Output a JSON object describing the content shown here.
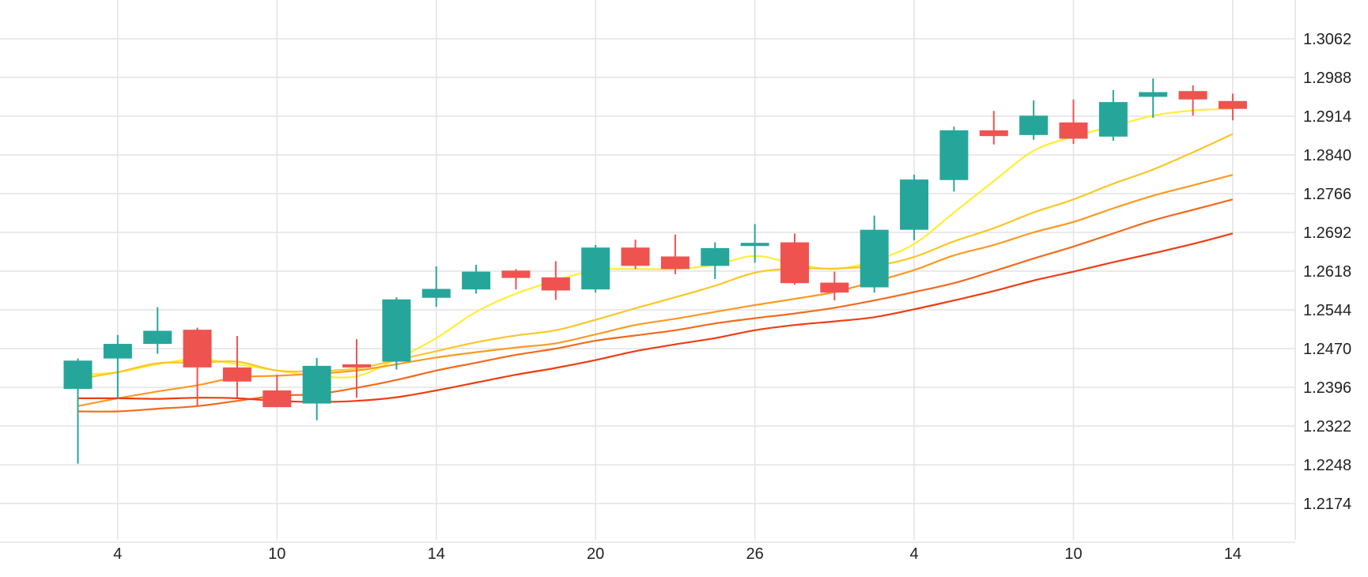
{
  "chart_data": {
    "type": "candlestick",
    "title": "",
    "xlabel": "",
    "ylabel": "",
    "ylim": [
      1.21,
      1.3136
    ],
    "y_ticks": [
      1.3062,
      1.2988,
      1.2914,
      1.284,
      1.2766,
      1.2692,
      1.2618,
      1.2544,
      1.247,
      1.2396,
      1.2322,
      1.2248,
      1.2174
    ],
    "x_tick_labels": [
      {
        "index": 1,
        "label": "4"
      },
      {
        "index": 5,
        "label": "10"
      },
      {
        "index": 9,
        "label": "14"
      },
      {
        "index": 13,
        "label": "20"
      },
      {
        "index": 17,
        "label": "26"
      },
      {
        "index": 21,
        "label": "4"
      },
      {
        "index": 25,
        "label": "10"
      },
      {
        "index": 29,
        "label": "14"
      }
    ],
    "grid": true,
    "colors": {
      "up": "#26a69a",
      "down": "#ef5350",
      "grid": "#e3e3e3",
      "axis_text": "#222222"
    },
    "candles": [
      {
        "o": 1.2393,
        "h": 1.2451,
        "l": 1.225,
        "c": 1.2447
      },
      {
        "o": 1.2451,
        "h": 1.2496,
        "l": 1.2375,
        "c": 1.2479
      },
      {
        "o": 1.2479,
        "h": 1.2549,
        "l": 1.246,
        "c": 1.2504
      },
      {
        "o": 1.2506,
        "h": 1.251,
        "l": 1.2361,
        "c": 1.2434
      },
      {
        "o": 1.2434,
        "h": 1.2494,
        "l": 1.2376,
        "c": 1.2407
      },
      {
        "o": 1.239,
        "h": 1.242,
        "l": 1.2364,
        "c": 1.2358
      },
      {
        "o": 1.2365,
        "h": 1.2452,
        "l": 1.2333,
        "c": 1.2437
      },
      {
        "o": 1.244,
        "h": 1.2488,
        "l": 1.2376,
        "c": 1.2437
      },
      {
        "o": 1.2445,
        "h": 1.2568,
        "l": 1.243,
        "c": 1.2564
      },
      {
        "o": 1.2567,
        "h": 1.2627,
        "l": 1.255,
        "c": 1.2584
      },
      {
        "o": 1.2583,
        "h": 1.263,
        "l": 1.2575,
        "c": 1.2617
      },
      {
        "o": 1.2619,
        "h": 1.2622,
        "l": 1.2583,
        "c": 1.2605
      },
      {
        "o": 1.2606,
        "h": 1.2637,
        "l": 1.2563,
        "c": 1.2581
      },
      {
        "o": 1.2583,
        "h": 1.2668,
        "l": 1.2577,
        "c": 1.2663
      },
      {
        "o": 1.2663,
        "h": 1.2678,
        "l": 1.2622,
        "c": 1.2628
      },
      {
        "o": 1.2646,
        "h": 1.2688,
        "l": 1.2612,
        "c": 1.2622
      },
      {
        "o": 1.2628,
        "h": 1.2673,
        "l": 1.2603,
        "c": 1.2662
      },
      {
        "o": 1.2666,
        "h": 1.2708,
        "l": 1.2634,
        "c": 1.2672
      },
      {
        "o": 1.2673,
        "h": 1.269,
        "l": 1.2592,
        "c": 1.2595
      },
      {
        "o": 1.2596,
        "h": 1.2617,
        "l": 1.2562,
        "c": 1.2577
      },
      {
        "o": 1.2587,
        "h": 1.2724,
        "l": 1.2577,
        "c": 1.2697
      },
      {
        "o": 1.2697,
        "h": 1.2802,
        "l": 1.2677,
        "c": 1.2793
      },
      {
        "o": 1.2792,
        "h": 1.2894,
        "l": 1.277,
        "c": 1.2887
      },
      {
        "o": 1.2887,
        "h": 1.2924,
        "l": 1.286,
        "c": 1.2876
      },
      {
        "o": 1.2878,
        "h": 1.2944,
        "l": 1.2869,
        "c": 1.2915
      },
      {
        "o": 1.2902,
        "h": 1.2946,
        "l": 1.2861,
        "c": 1.2871
      },
      {
        "o": 1.2875,
        "h": 1.2964,
        "l": 1.2867,
        "c": 1.2941
      },
      {
        "o": 1.2951,
        "h": 1.2986,
        "l": 1.2911,
        "c": 1.296
      },
      {
        "o": 1.2962,
        "h": 1.2973,
        "l": 1.2915,
        "c": 1.2946
      },
      {
        "o": 1.2943,
        "h": 1.2957,
        "l": 1.2906,
        "c": 1.2928
      }
    ],
    "moving_averages": [
      {
        "color": "#ffee33",
        "values": [
          1.242,
          1.2425,
          1.244,
          1.245,
          1.244,
          1.2428,
          1.2418,
          1.2417,
          1.245,
          1.249,
          1.254,
          1.2575,
          1.26,
          1.262,
          1.2622,
          1.2622,
          1.263,
          1.2647,
          1.2632,
          1.2622,
          1.2638,
          1.267,
          1.273,
          1.279,
          1.2848,
          1.2875,
          1.2895,
          1.2915,
          1.2925,
          1.2928
        ]
      },
      {
        "color": "#fcc624",
        "values": [
          1.2412,
          1.2425,
          1.2442,
          1.2443,
          1.2445,
          1.2428,
          1.2427,
          1.2432,
          1.2448,
          1.2465,
          1.2482,
          1.2495,
          1.2505,
          1.2525,
          1.2547,
          1.2568,
          1.259,
          1.2615,
          1.2623,
          1.2623,
          1.2628,
          1.2645,
          1.2675,
          1.27,
          1.273,
          1.2755,
          1.2785,
          1.2812,
          1.2845,
          1.288
        ]
      },
      {
        "color": "#fb9a22",
        "values": [
          1.236,
          1.2375,
          1.2388,
          1.24,
          1.2415,
          1.2418,
          1.2422,
          1.2428,
          1.244,
          1.2453,
          1.2463,
          1.2472,
          1.248,
          1.2497,
          1.2515,
          1.2527,
          1.254,
          1.2553,
          1.2565,
          1.2578,
          1.2598,
          1.262,
          1.2648,
          1.2668,
          1.2692,
          1.2712,
          1.2738,
          1.2762,
          1.2782,
          1.2802
        ]
      },
      {
        "color": "#f46a1c",
        "values": [
          1.235,
          1.235,
          1.2355,
          1.236,
          1.237,
          1.238,
          1.2383,
          1.2395,
          1.241,
          1.2428,
          1.2443,
          1.2458,
          1.247,
          1.2485,
          1.2495,
          1.2505,
          1.2518,
          1.2528,
          1.2537,
          1.2548,
          1.2562,
          1.2578,
          1.2595,
          1.2618,
          1.2642,
          1.2665,
          1.269,
          1.2715,
          1.2735,
          1.2755
        ]
      },
      {
        "color": "#ee3d12",
        "values": [
          1.2375,
          1.2375,
          1.2374,
          1.2376,
          1.2375,
          1.237,
          1.2368,
          1.237,
          1.2377,
          1.239,
          1.2405,
          1.242,
          1.2433,
          1.2448,
          1.2465,
          1.2478,
          1.249,
          1.2505,
          1.2515,
          1.2522,
          1.253,
          1.2545,
          1.2562,
          1.258,
          1.26,
          1.2617,
          1.2635,
          1.2652,
          1.267,
          1.269
        ]
      }
    ]
  }
}
